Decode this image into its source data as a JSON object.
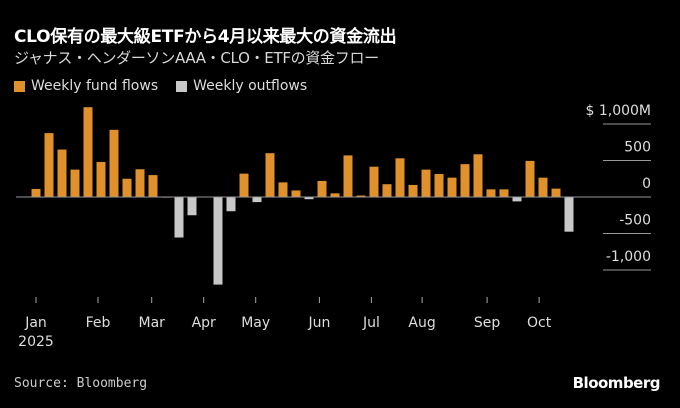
{
  "header": {
    "title": "CLO保有の最大級ETFから4月以来最大の資金流出",
    "subtitle": "ジャナス・ヘンダーソンAAA・CLO・ETFの資金フロー"
  },
  "footer": {
    "source": "Source: Bloomberg",
    "logo": "Bloomberg"
  },
  "colors": {
    "inflow": "#E0912B",
    "outflow": "#C8C8C8",
    "background": "#000000"
  },
  "chart_data": {
    "type": "bar",
    "title": "ジャナス・ヘンダーソンAAA・CLO・ETFの資金フロー",
    "unit": "$M",
    "legend": [
      {
        "label": "Weekly fund flows",
        "color": "#E0912B"
      },
      {
        "label": "Weekly outflows",
        "color": "#C8C8C8"
      }
    ],
    "legend_placement": "top-left",
    "values": [
      110,
      875,
      650,
      375,
      1230,
      480,
      920,
      250,
      380,
      300,
      5,
      -555,
      -250,
      0,
      -1200,
      -195,
      320,
      -70,
      600,
      200,
      90,
      -30,
      220,
      50,
      570,
      20,
      415,
      175,
      530,
      165,
      375,
      315,
      265,
      450,
      585,
      105,
      105,
      -60,
      495,
      265,
      115,
      -475
    ],
    "ylim": [
      -1300,
      1300
    ],
    "yticks": [
      {
        "value": 1000,
        "label": "$ 1,000M"
      },
      {
        "value": 500,
        "label": "500"
      },
      {
        "value": 0,
        "label": "0"
      },
      {
        "value": -500,
        "label": "-500"
      },
      {
        "value": -1000,
        "label": "-1,000"
      }
    ],
    "xticks": [
      {
        "week": 0,
        "label": "Jan",
        "sub": "2025"
      },
      {
        "week": 4.77,
        "label": "Feb"
      },
      {
        "week": 8.9,
        "label": "Mar"
      },
      {
        "week": 12.9,
        "label": "Apr"
      },
      {
        "week": 16.9,
        "label": "May"
      },
      {
        "week": 21.8,
        "label": "Jun"
      },
      {
        "week": 25.8,
        "label": "Jul"
      },
      {
        "week": 29.7,
        "label": "Aug"
      },
      {
        "week": 34.7,
        "label": "Sep"
      },
      {
        "week": 38.7,
        "label": "Oct"
      }
    ],
    "grid": true
  }
}
